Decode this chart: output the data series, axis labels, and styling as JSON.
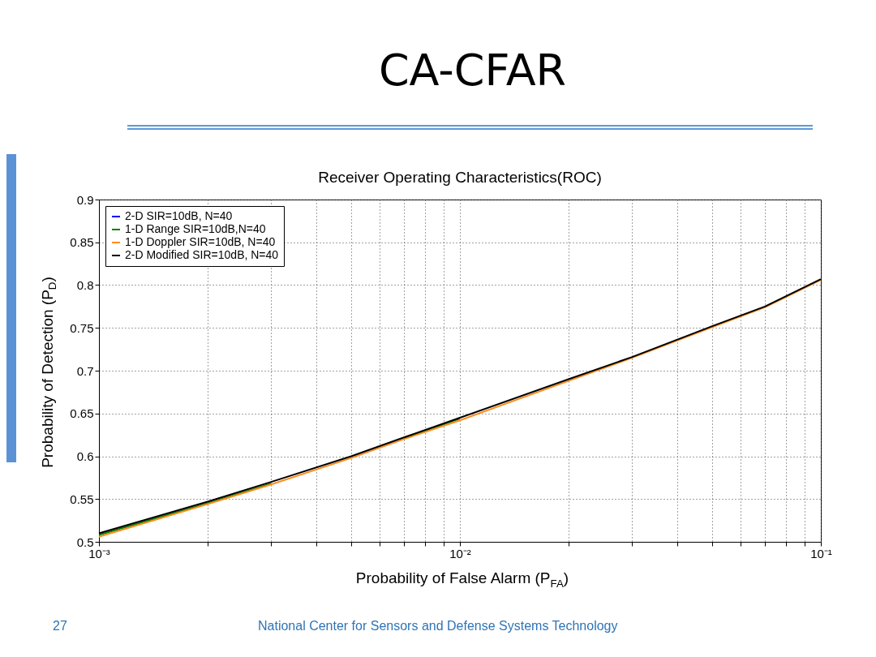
{
  "chart_data": {
    "type": "line",
    "title": "CA-CFAR",
    "subtitle": "Receiver Operating Characteristics(ROC)",
    "xlabel": "Probability of False Alarm (P$_{FA}$)",
    "ylabel": "Probability of Detection (P$_{D}$)",
    "x": [
      0.001,
      0.002,
      0.003,
      0.005,
      0.007,
      0.01,
      0.02,
      0.03,
      0.05,
      0.07,
      0.1
    ],
    "series": [
      {
        "name": "2-D SIR=10dB, N=40",
        "color": "#0000ff",
        "values": [
          null,
          null,
          null,
          null,
          null,
          null,
          null,
          null,
          null,
          null,
          null
        ]
      },
      {
        "name": "1-D Range SIR=10dB,N=40",
        "color": "#008000",
        "values": [
          0.508,
          0.545,
          0.568,
          null,
          0.621,
          0.644,
          null,
          null,
          null,
          null,
          null
        ]
      },
      {
        "name": "1-D Doppler SIR=10dB, N=40",
        "color": "#ff8c1a",
        "values": [
          0.506,
          0.544,
          0.567,
          0.598,
          0.62,
          0.642,
          0.688,
          0.715,
          0.751,
          0.774,
          0.806
        ]
      },
      {
        "name": "2-D Modified SIR=10dB, N=40",
        "color": "#000000",
        "values": [
          0.51,
          0.547,
          0.57,
          0.6,
          0.622,
          0.645,
          0.69,
          0.716,
          0.752,
          0.775,
          0.807
        ]
      }
    ],
    "log": "x",
    "xlim": [
      0.001,
      0.1
    ],
    "ylim": [
      0.5,
      0.9
    ],
    "xticks": [
      {
        "value": 0.001,
        "label": "10⁻³"
      },
      {
        "value": 0.002,
        "label": null
      },
      {
        "value": 0.003,
        "label": null
      },
      {
        "value": 0.004,
        "label": null
      },
      {
        "value": 0.005,
        "label": null
      },
      {
        "value": 0.006,
        "label": null
      },
      {
        "value": 0.007,
        "label": null
      },
      {
        "value": 0.008,
        "label": null
      },
      {
        "value": 0.009,
        "label": null
      },
      {
        "value": 0.01,
        "label": "10⁻²"
      },
      {
        "value": 0.02,
        "label": null
      },
      {
        "value": 0.03,
        "label": null
      },
      {
        "value": 0.04,
        "label": null
      },
      {
        "value": 0.05,
        "label": null
      },
      {
        "value": 0.06,
        "label": null
      },
      {
        "value": 0.07,
        "label": null
      },
      {
        "value": 0.08,
        "label": null
      },
      {
        "value": 0.09,
        "label": null
      },
      {
        "value": 0.1,
        "label": "10⁻¹"
      }
    ],
    "yticks": [
      0.5,
      0.55,
      0.6,
      0.65,
      0.7,
      0.75,
      0.8,
      0.85,
      0.9
    ],
    "grid": true,
    "legend": "top left",
    "annotations": [
      "27",
      "National Center for Sensors and Defense Systems Technology"
    ]
  }
}
